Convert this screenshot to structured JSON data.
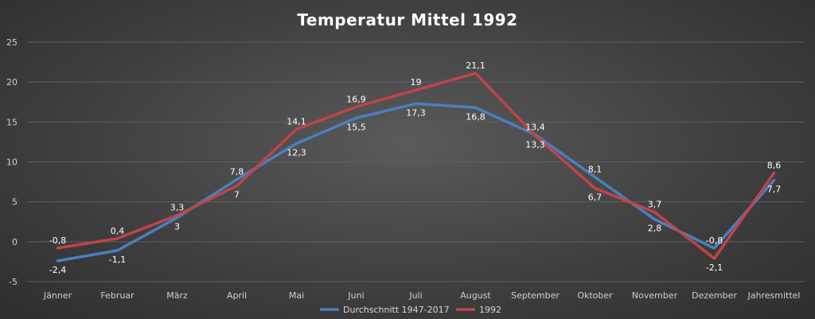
{
  "chart_data": {
    "type": "line",
    "title": "Temperatur Mittel 1992",
    "xlabel": "",
    "ylabel": "",
    "ylim": [
      -5,
      25
    ],
    "yticks": [
      "-5",
      "0",
      "5",
      "10",
      "15",
      "20",
      "25"
    ],
    "ytick_values": [
      -5,
      0,
      5,
      10,
      15,
      20,
      25
    ],
    "grid": true,
    "legend": "bottom-center",
    "categories": [
      "Jänner",
      "Februar",
      "März",
      "April",
      "Mai",
      "Juni",
      "Juli",
      "August",
      "September",
      "Oktober",
      "November",
      "Dezember",
      "Jahresmittel"
    ],
    "series": [
      {
        "name": "Durchschnitt 1947-2017",
        "color": "#4a7fc1",
        "values": [
          -2.4,
          -1.1,
          3.0,
          7.8,
          12.3,
          15.5,
          17.3,
          16.8,
          13.4,
          8.1,
          2.8,
          -0.8,
          7.7
        ],
        "labels": [
          "-2,4",
          "-1,1",
          "3",
          "7,8",
          "12,3",
          "15,5",
          "17,3",
          "16,8",
          "13,4",
          "8,1",
          "2,8",
          "-0,8",
          "7,7"
        ]
      },
      {
        "name": "1992",
        "color": "#c0444a",
        "values": [
          -0.8,
          0.4,
          3.3,
          7.0,
          14.1,
          16.9,
          19.0,
          21.1,
          13.3,
          6.7,
          3.7,
          -2.1,
          8.6
        ],
        "labels": [
          "-0,8",
          "0,4",
          "3,3",
          "7",
          "14,1",
          "16,9",
          "19",
          "21,1",
          "13,3",
          "6,7",
          "3,7",
          "-2,1",
          "8,6"
        ]
      }
    ]
  }
}
